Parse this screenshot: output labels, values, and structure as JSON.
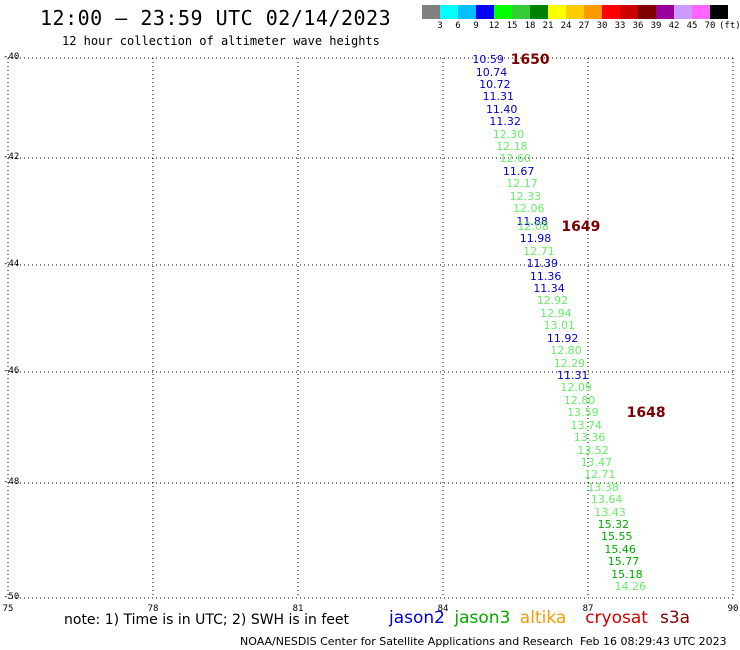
{
  "header": {
    "title": "12:00 – 23:59 UTC 02/14/2023",
    "subtitle": "12 hour collection of altimeter wave heights"
  },
  "legend": {
    "colors": [
      "#808080",
      "#00ffff",
      "#00bfff",
      "#0000ff",
      "#00ff00",
      "#33cc33",
      "#008000",
      "#ffff00",
      "#ffcc00",
      "#ff9900",
      "#ff0000",
      "#cc0000",
      "#800000",
      "#990099",
      "#cc99ff",
      "#ff66ff",
      "#000000"
    ],
    "labels": [
      "3",
      "6",
      "9",
      "12",
      "15",
      "18",
      "21",
      "24",
      "27",
      "30",
      "33",
      "36",
      "39",
      "42",
      "45",
      "70",
      "(ft)"
    ]
  },
  "map": {
    "lat_labels": [
      "-40",
      "-42",
      "-44",
      "-46",
      "-48",
      "-50"
    ],
    "lon_labels": [
      "75",
      "78",
      "81",
      "84",
      "87",
      "90"
    ],
    "colors": {
      "jason2": "#0000cc",
      "jason3": "#66ee66",
      "jason3_dark": "#00aa00",
      "revtime": "#7a0000"
    }
  },
  "chart_data": {
    "type": "scatter",
    "xlim": [
      75,
      90
    ],
    "ylim": [
      -50,
      -40
    ],
    "ylabel": "",
    "xlabel": "",
    "grid": true,
    "points": [
      {
        "lat": -40.02,
        "lon": 84.65,
        "v": "10.59",
        "sat": "jason2"
      },
      {
        "lat": -40.25,
        "lon": 84.72,
        "v": "10.74",
        "sat": "jason2"
      },
      {
        "lat": -40.48,
        "lon": 84.79,
        "v": "10.72",
        "sat": "jason2"
      },
      {
        "lat": -40.71,
        "lon": 84.86,
        "v": "11.31",
        "sat": "jason2"
      },
      {
        "lat": -40.94,
        "lon": 84.93,
        "v": "11.40",
        "sat": "jason2"
      },
      {
        "lat": -41.17,
        "lon": 85.0,
        "v": "11.32",
        "sat": "jason2"
      },
      {
        "lat": -41.4,
        "lon": 85.07,
        "v": "12.30",
        "sat": "jason3"
      },
      {
        "lat": -41.63,
        "lon": 85.14,
        "v": "12.18",
        "sat": "jason3"
      },
      {
        "lat": -41.86,
        "lon": 85.21,
        "v": "12.60",
        "sat": "jason3"
      },
      {
        "lat": -42.09,
        "lon": 85.28,
        "v": "11.67",
        "sat": "jason2"
      },
      {
        "lat": -42.32,
        "lon": 85.35,
        "v": "12.17",
        "sat": "jason3"
      },
      {
        "lat": -42.55,
        "lon": 85.42,
        "v": "12.33",
        "sat": "jason3"
      },
      {
        "lat": -42.78,
        "lon": 85.49,
        "v": "12.06",
        "sat": "jason3"
      },
      {
        "lat": -43.01,
        "lon": 85.56,
        "v": "11.88",
        "sat": "jason2"
      },
      {
        "lat": -43.12,
        "lon": 85.58,
        "v": "12.08",
        "sat": "jason3"
      },
      {
        "lat": -43.34,
        "lon": 85.63,
        "v": "11.98",
        "sat": "jason2"
      },
      {
        "lat": -43.57,
        "lon": 85.7,
        "v": "12.71",
        "sat": "jason3"
      },
      {
        "lat": -43.8,
        "lon": 85.77,
        "v": "11.39",
        "sat": "jason2"
      },
      {
        "lat": -44.03,
        "lon": 85.84,
        "v": "11.36",
        "sat": "jason2"
      },
      {
        "lat": -44.26,
        "lon": 85.91,
        "v": "11.34",
        "sat": "jason2"
      },
      {
        "lat": -44.49,
        "lon": 85.98,
        "v": "12.92",
        "sat": "jason3"
      },
      {
        "lat": -44.72,
        "lon": 86.05,
        "v": "12.94",
        "sat": "jason3"
      },
      {
        "lat": -44.95,
        "lon": 86.12,
        "v": "13.01",
        "sat": "jason3"
      },
      {
        "lat": -45.18,
        "lon": 86.19,
        "v": "11.92",
        "sat": "jason2"
      },
      {
        "lat": -45.41,
        "lon": 86.26,
        "v": "12.80",
        "sat": "jason3"
      },
      {
        "lat": -45.64,
        "lon": 86.33,
        "v": "12.29",
        "sat": "jason3"
      },
      {
        "lat": -45.87,
        "lon": 86.4,
        "v": "11.31",
        "sat": "jason2"
      },
      {
        "lat": -46.1,
        "lon": 86.47,
        "v": "12.09",
        "sat": "jason3"
      },
      {
        "lat": -46.33,
        "lon": 86.54,
        "v": "12.80",
        "sat": "jason3"
      },
      {
        "lat": -46.56,
        "lon": 86.61,
        "v": "13.59",
        "sat": "jason3"
      },
      {
        "lat": -46.79,
        "lon": 86.68,
        "v": "13.74",
        "sat": "jason3"
      },
      {
        "lat": -47.02,
        "lon": 86.75,
        "v": "13.36",
        "sat": "jason3"
      },
      {
        "lat": -47.25,
        "lon": 86.82,
        "v": "13.52",
        "sat": "jason3"
      },
      {
        "lat": -47.48,
        "lon": 86.89,
        "v": "13.47",
        "sat": "jason3"
      },
      {
        "lat": -47.71,
        "lon": 86.96,
        "v": "12.71",
        "sat": "jason3"
      },
      {
        "lat": -47.94,
        "lon": 87.03,
        "v": "13.38",
        "sat": "jason3"
      },
      {
        "lat": -48.17,
        "lon": 87.1,
        "v": "13.64",
        "sat": "jason3"
      },
      {
        "lat": -48.4,
        "lon": 87.17,
        "v": "13.43",
        "sat": "jason3"
      },
      {
        "lat": -48.63,
        "lon": 87.24,
        "v": "15.32",
        "sat": "jason3_dark"
      },
      {
        "lat": -48.86,
        "lon": 87.31,
        "v": "15.55",
        "sat": "jason3_dark"
      },
      {
        "lat": -49.09,
        "lon": 87.38,
        "v": "15.46",
        "sat": "jason3_dark"
      },
      {
        "lat": -49.32,
        "lon": 87.45,
        "v": "15.77",
        "sat": "jason3_dark"
      },
      {
        "lat": -49.55,
        "lon": 87.52,
        "v": "15.18",
        "sat": "jason3_dark"
      },
      {
        "lat": -49.78,
        "lon": 87.59,
        "v": "14.26",
        "sat": "jason3"
      }
    ],
    "rev_labels": [
      {
        "lat": -40.02,
        "lon": 85.4,
        "v": "1650"
      },
      {
        "lat": -43.12,
        "lon": 86.45,
        "v": "1649"
      },
      {
        "lat": -46.56,
        "lon": 87.8,
        "v": "1648"
      }
    ]
  },
  "footer": {
    "note": "note:  1) Time is in UTC;  2) SWH is in feet",
    "satellites": [
      {
        "name": "jason2",
        "color": "#0000cc"
      },
      {
        "name": "jason3",
        "color": "#00aa00"
      },
      {
        "name": "altika",
        "color": "#ff9900"
      },
      {
        "name": "cryosat",
        "color": "#cc0000"
      },
      {
        "name": "s3a",
        "color": "#800000"
      }
    ],
    "credit": "NOAA/NESDIS Center for Satellite Applications and Research",
    "timestamp": "Feb 16 08:29:43 UTC 2023"
  }
}
